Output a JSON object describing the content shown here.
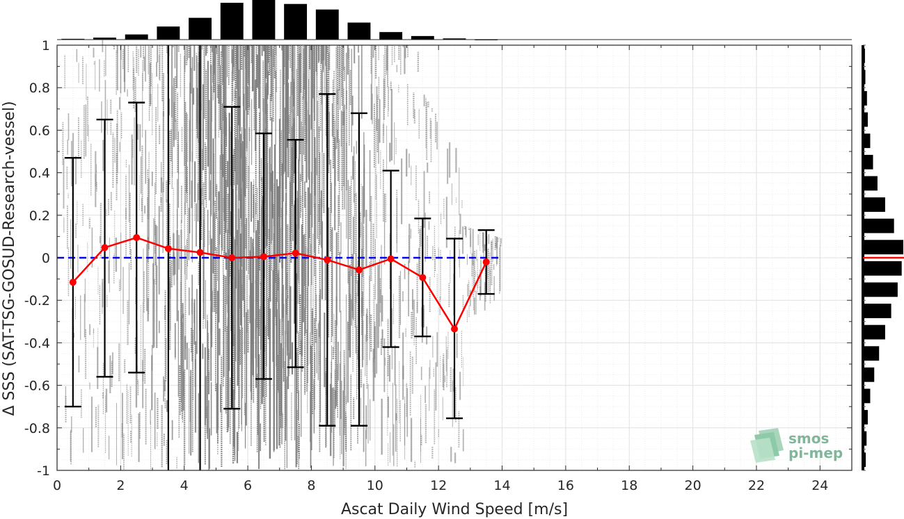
{
  "chart_data": {
    "type": "scatter",
    "xlabel": "Ascat Daily Wind Speed [m/s]",
    "ylabel": "Δ SSS (SAT-TSG-GOSUD-Research-vessel)",
    "xlim": [
      0,
      25
    ],
    "ylim": [
      -1,
      1
    ],
    "x_ticks": [
      "0",
      "2",
      "4",
      "6",
      "8",
      "10",
      "12",
      "14",
      "16",
      "18",
      "20",
      "22",
      "24"
    ],
    "y_ticks": [
      "1",
      "0.8",
      "0.6",
      "0.4",
      "0.2",
      "0",
      "-0.2",
      "-0.4",
      "-0.6",
      "-0.8",
      "-1"
    ],
    "grid": true,
    "reference_line": {
      "y": 0,
      "style": "dashed",
      "color": "#0000ff"
    },
    "bin_means": {
      "color": "#ff0000",
      "x": [
        0.5,
        1.5,
        2.5,
        3.5,
        4.5,
        5.5,
        6.5,
        7.5,
        8.5,
        9.5,
        10.5,
        11.5,
        12.5,
        13.5
      ],
      "y": [
        -0.115,
        0.048,
        0.095,
        0.043,
        0.025,
        0.0,
        0.005,
        0.022,
        -0.01,
        -0.057,
        -0.005,
        -0.093,
        -0.335,
        -0.02
      ]
    },
    "error_bars": {
      "color": "#000000",
      "x": [
        0.5,
        1.5,
        2.5,
        3.5,
        4.5,
        5.5,
        6.5,
        7.5,
        8.5,
        9.5,
        10.5,
        11.5,
        12.5,
        13.5
      ],
      "upper": [
        0.47,
        0.65,
        0.73,
        1.1,
        1.1,
        0.71,
        0.585,
        0.555,
        0.77,
        0.68,
        0.41,
        0.185,
        0.09,
        0.13
      ],
      "lower": [
        -0.7,
        -0.56,
        -0.54,
        -1.1,
        -1.1,
        -0.71,
        -0.57,
        -0.515,
        -0.79,
        -0.79,
        -0.42,
        -0.37,
        -0.755,
        -0.17
      ]
    },
    "scatter_cloud": {
      "color": "#808080",
      "x_range": [
        0.2,
        14.0
      ],
      "density_peak_x": 6.5
    },
    "top_histogram": {
      "bins_x": [
        0.5,
        1.5,
        2.5,
        3.5,
        4.5,
        5.5,
        6.5,
        7.5,
        8.5,
        9.5,
        10.5,
        11.5,
        12.5,
        13.5
      ],
      "relative_counts": [
        0.02,
        0.05,
        0.13,
        0.33,
        0.55,
        0.93,
        1.0,
        0.9,
        0.76,
        0.43,
        0.19,
        0.09,
        0.03,
        0.01
      ]
    },
    "right_histogram": {
      "bins_y": [
        0.95,
        0.85,
        0.75,
        0.65,
        0.55,
        0.45,
        0.35,
        0.25,
        0.15,
        0.05,
        -0.05,
        -0.15,
        -0.25,
        -0.35,
        -0.45,
        -0.55,
        -0.65,
        -0.75,
        -0.85,
        -0.95
      ],
      "relative_counts": [
        0.05,
        0.06,
        0.1,
        0.12,
        0.18,
        0.25,
        0.36,
        0.55,
        0.77,
        1.0,
        0.96,
        0.86,
        0.7,
        0.55,
        0.4,
        0.28,
        0.18,
        0.12,
        0.09,
        0.07
      ],
      "mean_line_color": "#ff0000"
    }
  },
  "logo": {
    "line1": "smos",
    "line2": "pi-mep"
  }
}
